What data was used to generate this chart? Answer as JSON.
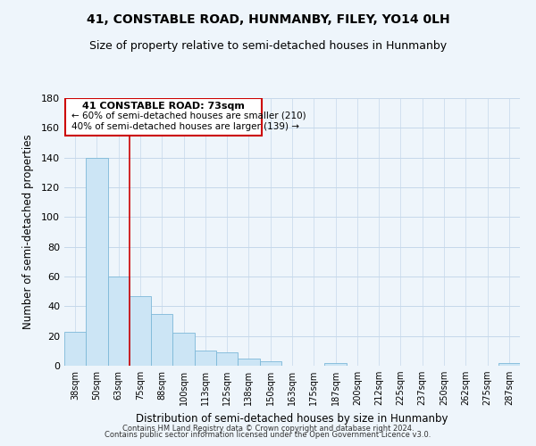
{
  "title": "41, CONSTABLE ROAD, HUNMANBY, FILEY, YO14 0LH",
  "subtitle": "Size of property relative to semi-detached houses in Hunmanby",
  "xlabel": "Distribution of semi-detached houses by size in Hunmanby",
  "ylabel": "Number of semi-detached properties",
  "bin_labels": [
    "38sqm",
    "50sqm",
    "63sqm",
    "75sqm",
    "88sqm",
    "100sqm",
    "113sqm",
    "125sqm",
    "138sqm",
    "150sqm",
    "163sqm",
    "175sqm",
    "187sqm",
    "200sqm",
    "212sqm",
    "225sqm",
    "237sqm",
    "250sqm",
    "262sqm",
    "275sqm",
    "287sqm"
  ],
  "bar_heights": [
    23,
    140,
    60,
    47,
    35,
    22,
    10,
    9,
    5,
    3,
    0,
    0,
    2,
    0,
    0,
    0,
    0,
    0,
    0,
    0,
    2
  ],
  "bar_color": "#cce5f5",
  "bar_edge_color": "#7db8d8",
  "vline_color": "#cc0000",
  "annotation_label": "41 CONSTABLE ROAD: 73sqm",
  "annotation_line1": "← 60% of semi-detached houses are smaller (210)",
  "annotation_line2": "40% of semi-detached houses are larger (139) →",
  "box_color": "#cc0000",
  "ylim": [
    0,
    180
  ],
  "yticks": [
    0,
    20,
    40,
    60,
    80,
    100,
    120,
    140,
    160,
    180
  ],
  "footer1": "Contains HM Land Registry data © Crown copyright and database right 2024.",
  "footer2": "Contains public sector information licensed under the Open Government Licence v3.0.",
  "title_fontsize": 10,
  "subtitle_fontsize": 9,
  "background_color": "#eef5fb",
  "grid_color": "#c5d8ea"
}
